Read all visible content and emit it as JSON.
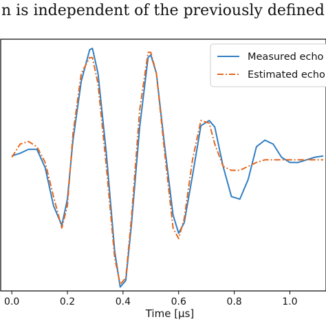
{
  "header": {
    "text": "n is independent of the previously defined ϕd of each p"
  },
  "chart_data": {
    "type": "line",
    "xlabel": "Time [μs]",
    "ylabel": "",
    "xlim": [
      -0.04,
      1.13
    ],
    "ylim": [
      -1.0,
      0.92
    ],
    "x_ticks": [
      "0.0",
      "0.2",
      "0.4",
      "0.6",
      "0.8",
      "1.0"
    ],
    "x_tick_values": [
      0.0,
      0.2,
      0.4,
      0.6,
      0.8,
      1.0
    ],
    "grid": false,
    "legend_position": "top-right",
    "colors": {
      "measured": "#2f7ec2",
      "estimated": "#e3661e"
    },
    "series": [
      {
        "name": "Measured echo",
        "style": "solid",
        "x": [
          0.0,
          0.03,
          0.06,
          0.09,
          0.12,
          0.15,
          0.18,
          0.2,
          0.22,
          0.25,
          0.28,
          0.29,
          0.31,
          0.34,
          0.37,
          0.39,
          0.41,
          0.43,
          0.46,
          0.49,
          0.5,
          0.52,
          0.55,
          0.58,
          0.6,
          0.62,
          0.65,
          0.68,
          0.71,
          0.73,
          0.76,
          0.79,
          0.82,
          0.85,
          0.88,
          0.91,
          0.94,
          0.97,
          1.0,
          1.03,
          1.06,
          1.09,
          1.12
        ],
        "y": [
          0.03,
          0.05,
          0.08,
          0.08,
          -0.06,
          -0.35,
          -0.5,
          -0.3,
          0.15,
          0.6,
          0.84,
          0.85,
          0.66,
          0.05,
          -0.7,
          -0.97,
          -0.92,
          -0.5,
          0.25,
          0.78,
          0.8,
          0.66,
          0.1,
          -0.42,
          -0.56,
          -0.48,
          -0.12,
          0.26,
          0.3,
          0.25,
          -0.05,
          -0.28,
          -0.3,
          -0.15,
          0.1,
          0.15,
          0.12,
          0.02,
          -0.02,
          -0.02,
          0.0,
          0.02,
          0.03
        ]
      },
      {
        "name": "Estimated echo",
        "style": "dashdot",
        "x": [
          0.0,
          0.03,
          0.06,
          0.09,
          0.12,
          0.15,
          0.18,
          0.2,
          0.22,
          0.25,
          0.28,
          0.29,
          0.31,
          0.34,
          0.37,
          0.39,
          0.41,
          0.43,
          0.46,
          0.49,
          0.5,
          0.52,
          0.55,
          0.58,
          0.6,
          0.62,
          0.65,
          0.68,
          0.71,
          0.73,
          0.76,
          0.79,
          0.82,
          0.85,
          0.88,
          0.91,
          0.94,
          0.97,
          1.0,
          1.03,
          1.06,
          1.09,
          1.12
        ],
        "y": [
          0.02,
          0.12,
          0.14,
          0.1,
          -0.02,
          -0.28,
          -0.52,
          -0.35,
          0.2,
          0.66,
          0.78,
          0.78,
          0.58,
          -0.05,
          -0.75,
          -0.95,
          -0.9,
          -0.45,
          0.38,
          0.82,
          0.82,
          0.66,
          0.05,
          -0.52,
          -0.6,
          -0.45,
          0.0,
          0.3,
          0.28,
          0.12,
          -0.05,
          -0.08,
          -0.08,
          -0.05,
          -0.02,
          0.0,
          0.0,
          0.0,
          0.0,
          0.0,
          0.0,
          0.0,
          0.0
        ]
      }
    ]
  }
}
